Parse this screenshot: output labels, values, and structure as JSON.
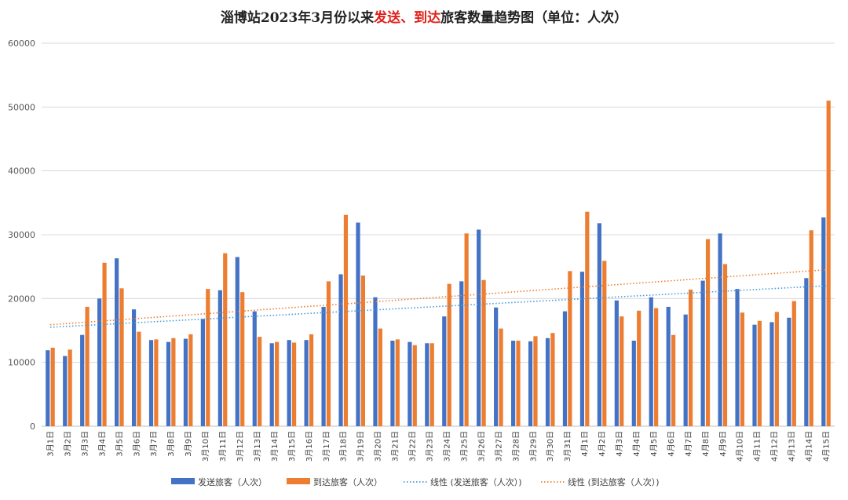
{
  "chart_data": {
    "type": "bar",
    "title_parts": [
      {
        "text": "淄博站2023年3月份以来",
        "style": "dark"
      },
      {
        "text": "发送、到达",
        "style": "red"
      },
      {
        "text": "旅客数量趋势图（单位：人次）",
        "style": "dark"
      }
    ],
    "categories": [
      "3月1日",
      "3月2日",
      "3月3日",
      "3月4日",
      "3月5日",
      "3月6日",
      "3月7日",
      "3月8日",
      "3月9日",
      "3月10日",
      "3月11日",
      "3月12日",
      "3月13日",
      "3月14日",
      "3月15日",
      "3月16日",
      "3月17日",
      "3月18日",
      "3月19日",
      "3月20日",
      "3月21日",
      "3月22日",
      "3月23日",
      "3月24日",
      "3月25日",
      "3月26日",
      "3月27日",
      "3月28日",
      "3月29日",
      "3月30日",
      "3月31日",
      "4月1日",
      "4月2日",
      "4月3日",
      "4月4日",
      "4月5日",
      "4月6日",
      "4月7日",
      "4月8日",
      "4月9日",
      "4月10日",
      "4月11日",
      "4月12日",
      "4月13日",
      "4月14日",
      "4月15日"
    ],
    "series": [
      {
        "name": "发送旅客（人次）",
        "color": "#4472c4",
        "values": [
          11900,
          11000,
          14300,
          20000,
          26300,
          18300,
          13500,
          13200,
          13700,
          16800,
          21300,
          26500,
          18000,
          13000,
          13500,
          13500,
          18700,
          23800,
          31900,
          20200,
          13400,
          13200,
          13000,
          17200,
          22700,
          30800,
          18600,
          13400,
          13300,
          13800,
          18000,
          24200,
          31800,
          19700,
          13400,
          20200,
          18700,
          17500,
          22800,
          30200,
          21500,
          15900,
          16300,
          17000,
          23200,
          32700
        ]
      },
      {
        "name": "到达旅客（人次）",
        "color": "#ed7d31",
        "values": [
          12300,
          12000,
          18700,
          25600,
          21600,
          14800,
          13600,
          13800,
          14400,
          21500,
          27100,
          21000,
          14000,
          13200,
          13100,
          14400,
          22700,
          33100,
          23600,
          15300,
          13600,
          12700,
          13000,
          22300,
          30200,
          22900,
          15300,
          13400,
          14100,
          14600,
          24300,
          33600,
          25900,
          17200,
          18100,
          18500,
          14300,
          21400,
          29300,
          25400,
          17800,
          16500,
          17900,
          19600,
          30700,
          51000
        ]
      }
    ],
    "trendlines": [
      {
        "name": "线性 (发送旅客（人次）)",
        "color": "#4a9ad4",
        "start": 15500,
        "end": 22000
      },
      {
        "name": "线性 (到达旅客（人次）)",
        "color": "#ed7d31",
        "start": 15900,
        "end": 24500
      }
    ],
    "ylim": [
      0,
      60000
    ],
    "yticks": [
      0,
      10000,
      20000,
      30000,
      40000,
      50000,
      60000
    ],
    "grid": true,
    "legend_position": "bottom"
  }
}
